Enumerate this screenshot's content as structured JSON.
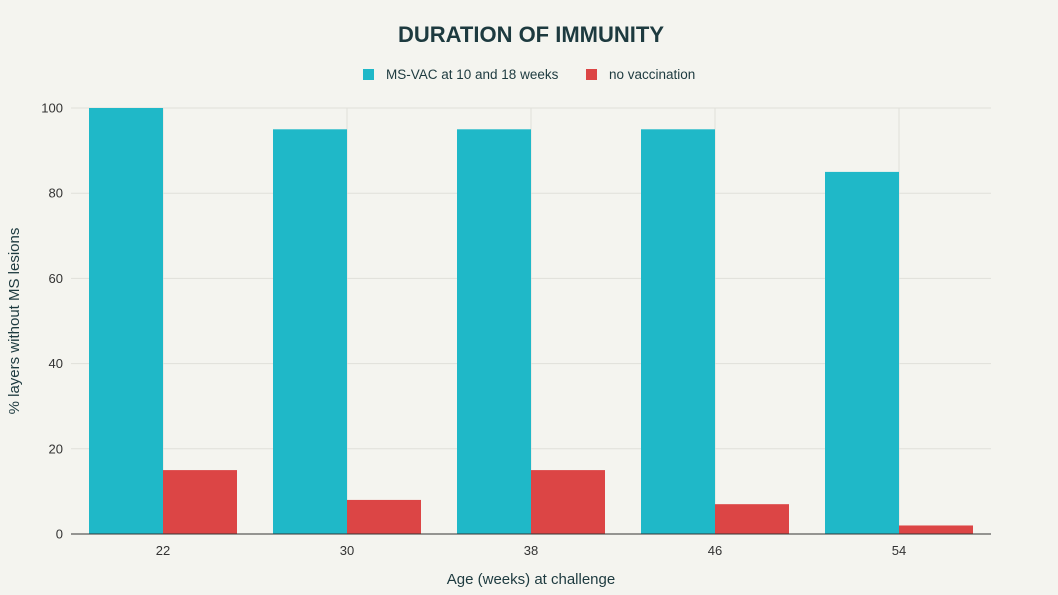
{
  "chart_data": {
    "type": "bar",
    "title": "DURATION OF IMMUNITY",
    "xlabel": "Age (weeks) at challenge",
    "ylabel": "% layers without MS lesions",
    "categories": [
      "22",
      "30",
      "38",
      "46",
      "54"
    ],
    "series": [
      {
        "name": "MS-VAC at 10 and 18 weeks",
        "color": "#1fb8c8",
        "values": [
          100,
          95,
          95,
          95,
          85
        ]
      },
      {
        "name": "no vaccination",
        "color": "#dc4545",
        "values": [
          15,
          8,
          15,
          7,
          2
        ]
      }
    ],
    "ylim": [
      0,
      100
    ],
    "yticks": [
      0,
      20,
      40,
      60,
      80,
      100
    ],
    "grid": true,
    "legend_position": "top-center"
  }
}
